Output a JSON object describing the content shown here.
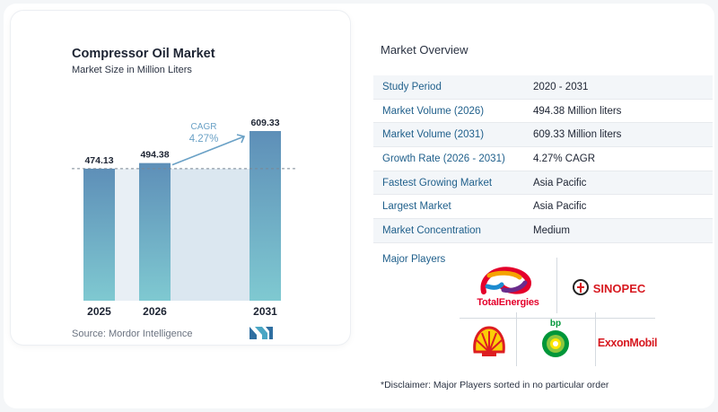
{
  "chart_card": {
    "title": "Compressor Oil Market",
    "subtitle": "Market Size in Million Liters",
    "source": "Source:  Mordor Intelligence",
    "logo_icon": "mordor-intelligence-logo-icon"
  },
  "chart_data": {
    "type": "bar",
    "categories": [
      "2025",
      "2026",
      "2031"
    ],
    "values": [
      474.13,
      494.38,
      609.33
    ],
    "value_labels": [
      "474.13",
      "494.38",
      "609.33"
    ],
    "title": "Compressor Oil Market",
    "subtitle": "Market Size in Million Liters",
    "xlabel": "",
    "ylabel": "",
    "ylim": [
      0,
      609.33
    ],
    "grid": false,
    "annotation": {
      "label": "CAGR",
      "value": "4.27%",
      "from": "2026",
      "to": "2031"
    },
    "colors": {
      "bar_top": "#5e8fb8",
      "bar_bottom": "#7fc9d1",
      "shade": "#dbe7f0",
      "arrow": "#6aa1c6",
      "cagr_text": "#6aa1c6"
    }
  },
  "overview": {
    "title": "Market Overview",
    "rows": [
      {
        "key": "Study Period",
        "value": "2020 - 2031"
      },
      {
        "key": "Market Volume (2026)",
        "value": "494.38 Million liters"
      },
      {
        "key": "Market Volume (2031)",
        "value": "609.33 Million liters"
      },
      {
        "key": "Growth Rate (2026 - 2031)",
        "value": "4.27% CAGR"
      },
      {
        "key": "Fastest Growing Market",
        "value": "Asia Pacific"
      },
      {
        "key": "Largest Market",
        "value": "Asia Pacific"
      },
      {
        "key": "Market Concentration",
        "value": "Medium"
      }
    ]
  },
  "players": {
    "label": "Major Players",
    "logos": [
      {
        "name": "TotalEnergies",
        "icon": "totalenergies-logo-icon"
      },
      {
        "name": "SINOPEC",
        "icon": "sinopec-logo-icon"
      },
      {
        "name": "Shell",
        "icon": "shell-logo-icon"
      },
      {
        "name": "bp",
        "icon": "bp-logo-icon"
      },
      {
        "name": "ExxonMobil",
        "icon": "exxonmobil-logo-icon"
      }
    ]
  },
  "disclaimer": "*Disclaimer: Major Players sorted in no particular order"
}
